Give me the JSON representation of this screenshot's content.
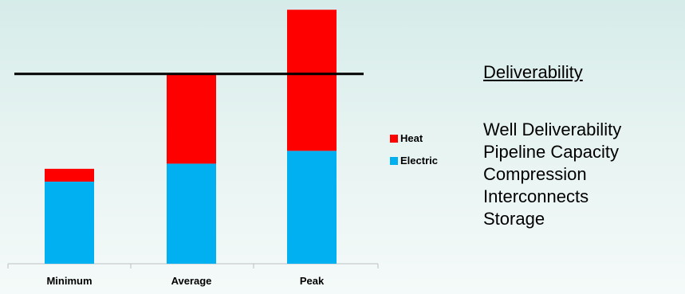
{
  "chart_data": {
    "type": "bar",
    "stacked": true,
    "categories": [
      "Minimum",
      "Average",
      "Peak"
    ],
    "series": [
      {
        "name": "Electric",
        "values": [
          32,
          39,
          44
        ],
        "color": "#00b0f0"
      },
      {
        "name": "Heat",
        "values": [
          5,
          35,
          55
        ],
        "color": "#ff0000"
      }
    ],
    "reference_line": 74,
    "ylim": [
      0,
      100
    ],
    "legend": "right",
    "grid": false,
    "title": "",
    "xlabel": "",
    "ylabel": ""
  },
  "panel": {
    "heading": "Deliverability",
    "items": [
      "Well Deliverability",
      "Pipeline Capacity",
      "Compression",
      "Interconnects",
      "Storage"
    ]
  }
}
